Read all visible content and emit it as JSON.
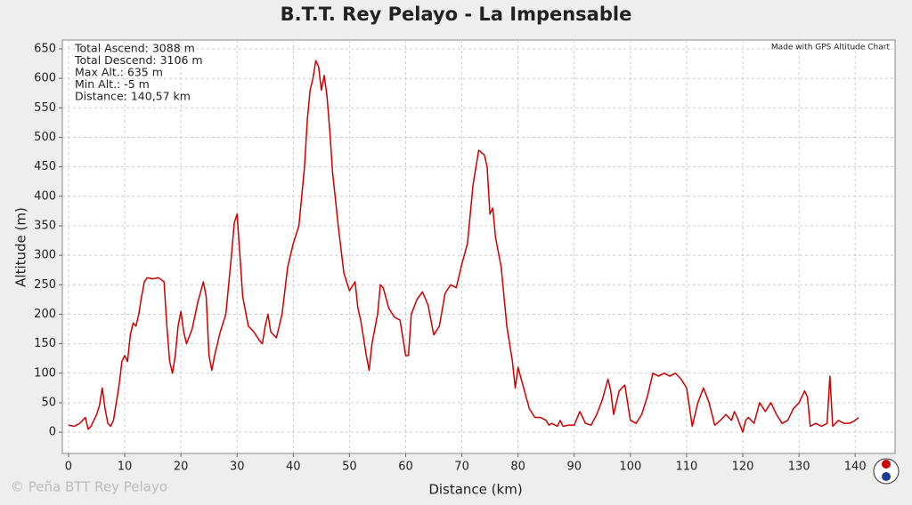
{
  "chart_data": {
    "type": "line",
    "title": "B.T.T. Rey Pelayo - La Impensable",
    "xlabel": "Distance (km)",
    "ylabel": "Altitude (m)",
    "annotations": [
      "Total Ascend: 3088 m",
      "Total Descend: 3106 m",
      "Max Alt.: 635 m",
      "Min Alt.: -5 m",
      "Distance: 140,57 km"
    ],
    "credit": "Made with GPS Altitude Chart",
    "watermark": "© Peña BTT Rey Pelayo",
    "color": "#cc0000",
    "grid": true,
    "xlim": [
      -1.1,
      147.1
    ],
    "ylim": [
      -36,
      665
    ],
    "xticks": [
      0,
      10,
      20,
      30,
      40,
      50,
      60,
      70,
      80,
      90,
      100,
      110,
      120,
      130,
      140
    ],
    "yticks": [
      0,
      50,
      100,
      150,
      200,
      250,
      300,
      350,
      400,
      450,
      500,
      550,
      600,
      650
    ],
    "x": [
      0,
      1,
      2,
      3,
      3.5,
      4,
      5,
      5.5,
      6,
      6.5,
      7,
      7.5,
      8,
      9,
      9.5,
      10,
      10.5,
      11,
      11.5,
      12,
      12.5,
      13,
      13.5,
      14,
      15,
      16,
      17,
      17.5,
      18,
      18.5,
      19,
      19.5,
      20,
      20.5,
      21,
      22,
      23,
      24,
      24.5,
      25,
      25.5,
      26,
      27,
      28,
      29,
      29.5,
      30,
      30.5,
      31,
      32,
      33,
      34,
      34.5,
      35,
      35.5,
      36,
      37,
      38,
      38.5,
      39,
      40,
      41,
      42,
      42.5,
      43,
      43.5,
      44,
      44.5,
      45,
      45.5,
      46,
      46.5,
      47,
      48,
      49,
      50,
      51,
      51.5,
      52,
      53,
      53.5,
      54,
      55,
      55.5,
      56,
      57,
      58,
      59,
      60,
      60.5,
      61,
      62,
      63,
      64,
      65,
      66,
      67,
      68,
      69,
      70,
      71,
      72,
      73,
      74,
      74.5,
      75,
      75.5,
      76,
      77,
      78,
      79,
      79.5,
      80,
      81,
      82,
      83,
      84,
      85,
      85.5,
      86,
      87,
      87.5,
      88,
      89,
      90,
      91,
      92,
      93,
      94,
      95,
      96,
      96.5,
      97,
      98,
      99,
      100,
      101,
      102,
      103,
      104,
      105,
      106,
      107,
      108,
      109,
      110,
      111,
      112,
      113,
      114,
      115,
      116,
      117,
      118,
      118.5,
      119,
      120,
      120.5,
      121,
      122,
      123,
      124,
      125,
      126,
      127,
      128,
      129,
      130,
      131,
      131.5,
      132,
      133,
      134,
      135,
      135.5,
      136,
      137,
      138,
      139,
      140,
      140.6
    ],
    "values": [
      12,
      10,
      15,
      25,
      5,
      10,
      30,
      45,
      75,
      40,
      15,
      10,
      20,
      80,
      120,
      130,
      120,
      165,
      185,
      180,
      200,
      230,
      255,
      262,
      260,
      262,
      255,
      180,
      120,
      100,
      130,
      180,
      205,
      170,
      150,
      175,
      220,
      255,
      230,
      130,
      105,
      130,
      170,
      200,
      300,
      355,
      370,
      300,
      230,
      180,
      170,
      155,
      150,
      180,
      200,
      170,
      160,
      200,
      240,
      280,
      320,
      350,
      450,
      530,
      580,
      600,
      630,
      620,
      580,
      605,
      570,
      510,
      440,
      350,
      270,
      240,
      255,
      210,
      190,
      130,
      105,
      150,
      200,
      250,
      245,
      210,
      195,
      190,
      130,
      130,
      200,
      225,
      238,
      215,
      165,
      180,
      235,
      250,
      245,
      285,
      320,
      420,
      478,
      470,
      450,
      370,
      380,
      330,
      280,
      180,
      120,
      75,
      110,
      75,
      40,
      25,
      25,
      20,
      12,
      15,
      10,
      20,
      10,
      12,
      12,
      35,
      15,
      12,
      30,
      55,
      90,
      70,
      30,
      70,
      80,
      20,
      15,
      30,
      60,
      100,
      95,
      100,
      95,
      100,
      90,
      75,
      10,
      50,
      75,
      50,
      12,
      20,
      30,
      20,
      35,
      25,
      0,
      20,
      25,
      15,
      50,
      35,
      50,
      30,
      15,
      20,
      40,
      50,
      70,
      60,
      10,
      15,
      10,
      15,
      95,
      10,
      20,
      15,
      15,
      20,
      25
    ]
  }
}
